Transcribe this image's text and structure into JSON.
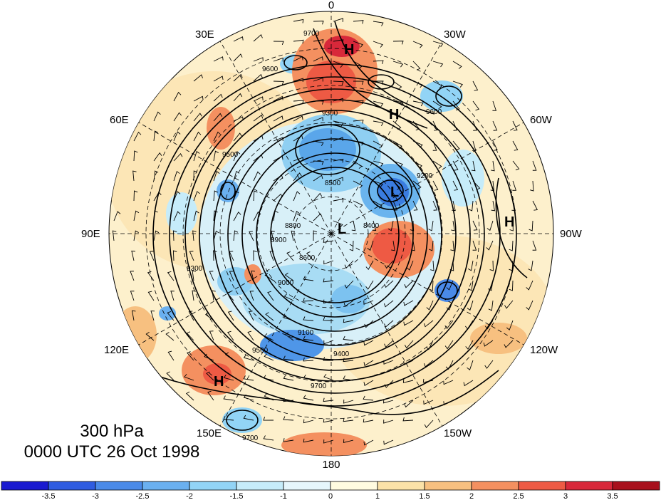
{
  "map": {
    "longitude_labels": [
      {
        "text": "0"
      },
      {
        "text": "30W"
      },
      {
        "text": "60W"
      },
      {
        "text": "90W"
      },
      {
        "text": "120W"
      },
      {
        "text": "150W"
      },
      {
        "text": "180"
      },
      {
        "text": "150E"
      },
      {
        "text": "120E"
      },
      {
        "text": "90E"
      },
      {
        "text": "60E"
      },
      {
        "text": "30E"
      }
    ],
    "pressure_systems": [
      "H",
      "H",
      "L",
      "H",
      "H",
      "L"
    ],
    "contour_labels": [
      "9700",
      "9600",
      "9500",
      "9300",
      "9200",
      "9100",
      "9000",
      "8900",
      "8800",
      "8600",
      "8500",
      "8400",
      "9400",
      "9700",
      "9700",
      "9600",
      "9500",
      "9300"
    ]
  },
  "caption": {
    "level": "300 hPa",
    "time": "0000 UTC 26 Oct 1998"
  },
  "colorbar": {
    "ticks": [
      "-3.5",
      "-3",
      "-2.5",
      "-2",
      "-1.5",
      "-1",
      "0",
      "1",
      "1.5",
      "2",
      "2.5",
      "3",
      "3.5"
    ],
    "colors": [
      "#1a1ad0",
      "#2f5ce0",
      "#4a8ae8",
      "#6ab0f0",
      "#92d4f6",
      "#c6ecfa",
      "#e6f6fc",
      "#fffbe0",
      "#fbe2a8",
      "#f7c080",
      "#f49060",
      "#ee5a44",
      "#d8283a",
      "#a8101c"
    ]
  }
}
